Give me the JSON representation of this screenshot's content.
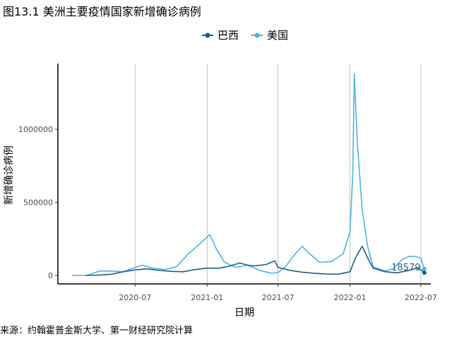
{
  "figure": {
    "title": "图13.1 美洲主要疫情国家新增确诊病例",
    "source": "来源：约翰霍普金斯大学、第一财经研究院计算"
  },
  "chart_data": {
    "type": "line",
    "xlabel": "日期",
    "ylabel": "新增确诊病例",
    "x_ticks": [
      "2020-07",
      "2021-01",
      "2021-07",
      "2022-01",
      "2022-07"
    ],
    "y_ticks": [
      0,
      500000,
      1000000
    ],
    "y_tick_labels": [
      "0",
      "500000",
      "1000000"
    ],
    "ylim": [
      -50000,
      1450000
    ],
    "xlim": [
      "2020-01-22",
      "2022-07-12"
    ],
    "grid": "vertical-major",
    "legend_position": "top",
    "annotation": {
      "text": "18579",
      "x": "2022-06-05",
      "y": 18579,
      "series": "巴西"
    },
    "colors": {
      "巴西": "#1f5f8b",
      "美国": "#4db3e6"
    },
    "series": [
      {
        "name": "巴西",
        "color": "#1f5f8b",
        "x": [
          "2020-02-26",
          "2020-04-01",
          "2020-05-01",
          "2020-06-01",
          "2020-07-01",
          "2020-08-01",
          "2020-09-01",
          "2020-10-01",
          "2020-11-01",
          "2020-12-01",
          "2021-01-01",
          "2021-02-01",
          "2021-03-01",
          "2021-03-25",
          "2021-04-15",
          "2021-05-01",
          "2021-06-01",
          "2021-06-23",
          "2021-07-01",
          "2021-08-01",
          "2021-09-01",
          "2021-10-01",
          "2021-11-01",
          "2021-12-01",
          "2022-01-01",
          "2022-01-15",
          "2022-02-01",
          "2022-02-15",
          "2022-03-01",
          "2022-04-01",
          "2022-05-01",
          "2022-06-01",
          "2022-06-20",
          "2022-07-01",
          "2022-07-10"
        ],
        "y": [
          0,
          2000,
          8000,
          25000,
          38000,
          45000,
          35000,
          28000,
          25000,
          40000,
          50000,
          50000,
          65000,
          85000,
          70000,
          65000,
          75000,
          100000,
          55000,
          35000,
          22000,
          15000,
          10000,
          8000,
          25000,
          120000,
          200000,
          120000,
          50000,
          25000,
          18000,
          35000,
          50000,
          38000,
          18579
        ]
      },
      {
        "name": "美国",
        "color": "#4db3e6",
        "x": [
          "2020-01-22",
          "2020-03-01",
          "2020-04-01",
          "2020-05-01",
          "2020-06-01",
          "2020-07-01",
          "2020-07-20",
          "2020-08-15",
          "2020-09-15",
          "2020-10-15",
          "2020-11-15",
          "2020-12-15",
          "2021-01-08",
          "2021-01-25",
          "2021-02-15",
          "2021-03-15",
          "2021-04-15",
          "2021-05-15",
          "2021-06-15",
          "2021-07-01",
          "2021-07-20",
          "2021-08-15",
          "2021-09-01",
          "2021-09-15",
          "2021-10-15",
          "2021-11-15",
          "2021-12-15",
          "2022-01-01",
          "2022-01-08",
          "2022-01-12",
          "2022-01-20",
          "2022-02-01",
          "2022-02-15",
          "2022-03-01",
          "2022-04-01",
          "2022-04-20",
          "2022-05-15",
          "2022-06-01",
          "2022-06-15",
          "2022-07-01",
          "2022-07-10"
        ],
        "y": [
          0,
          1000,
          30000,
          30000,
          25000,
          55000,
          70000,
          50000,
          40000,
          60000,
          150000,
          220000,
          280000,
          180000,
          90000,
          55000,
          70000,
          35000,
          15000,
          20000,
          60000,
          150000,
          200000,
          160000,
          90000,
          95000,
          150000,
          300000,
          700000,
          1380000,
          900000,
          450000,
          200000,
          60000,
          30000,
          45000,
          110000,
          130000,
          130000,
          120000,
          45000
        ]
      }
    ]
  }
}
